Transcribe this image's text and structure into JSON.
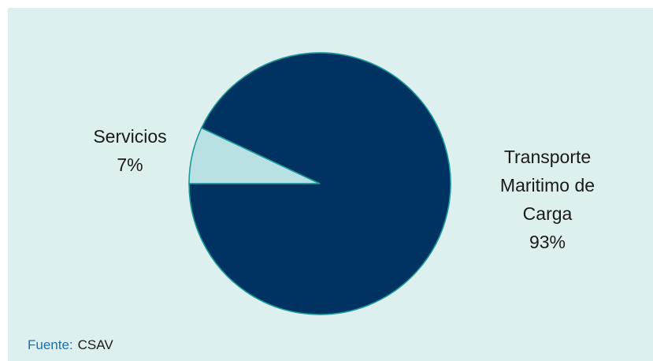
{
  "chart_data": {
    "type": "pie",
    "slices": [
      {
        "label": "Servicios",
        "value": 7,
        "value_label": "7%",
        "color": "#b9e0e3"
      },
      {
        "label": "Transporte Maritimo de Carga",
        "value": 93,
        "value_label": "93%",
        "color": "#003262"
      }
    ],
    "label_lines": {
      "servicios": [
        "Servicios"
      ],
      "transporte": [
        "Transporte",
        "Maritimo de",
        "Carga"
      ]
    },
    "slice_stroke": "#1a9a9a",
    "background": "#ddefef",
    "legend": "none"
  },
  "source": {
    "prefix": "Fuente:",
    "value": "CSAV"
  }
}
